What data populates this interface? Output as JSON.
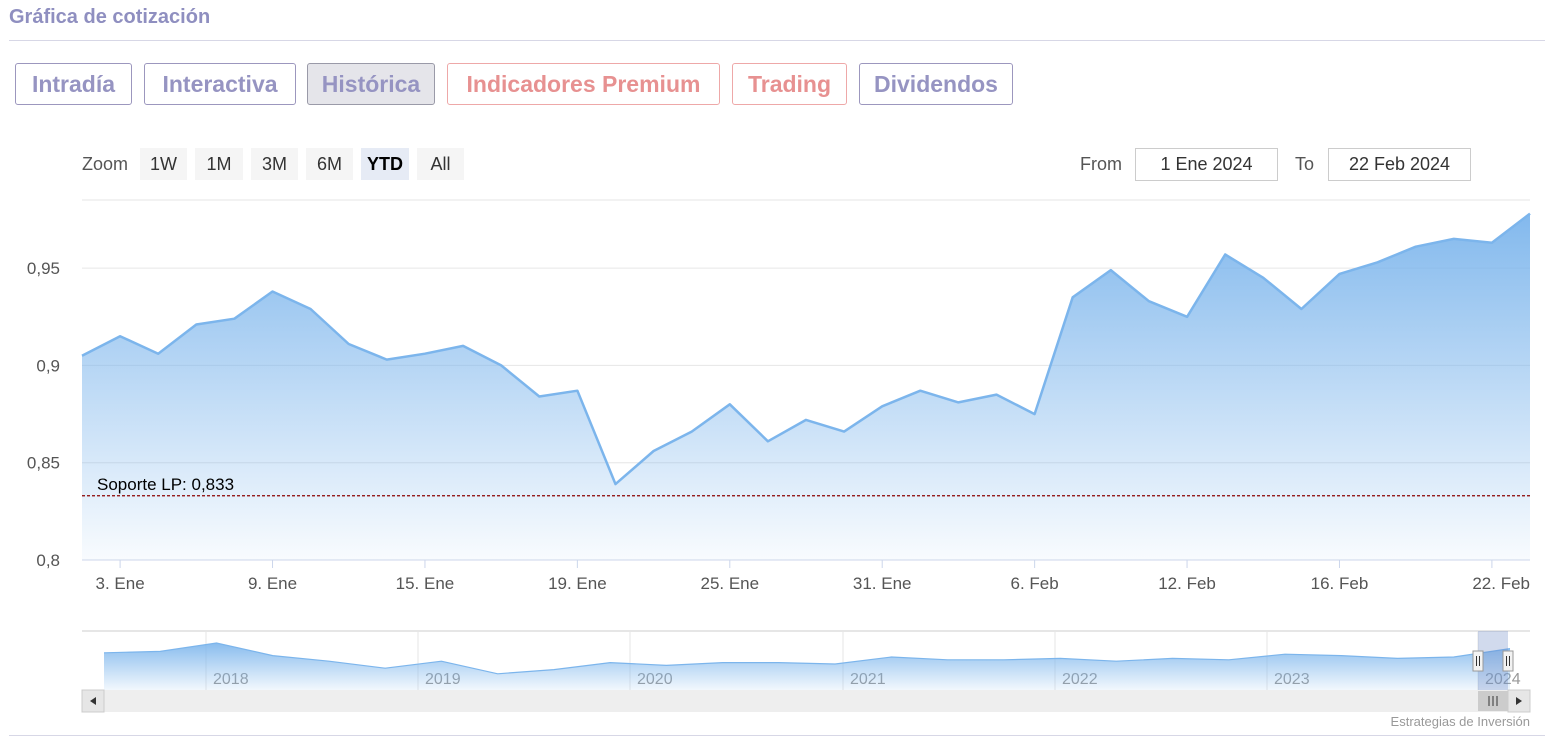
{
  "header": {
    "title": "Gráfica de cotización"
  },
  "tabs": [
    {
      "label": "Intradía",
      "state": "normal"
    },
    {
      "label": "Interactiva",
      "state": "normal"
    },
    {
      "label": "Histórica",
      "state": "active"
    },
    {
      "label": "Indicadores Premium",
      "state": "premium"
    },
    {
      "label": "Trading",
      "state": "premium"
    },
    {
      "label": "Dividendos",
      "state": "normal"
    }
  ],
  "range_selector": {
    "zoom_label": "Zoom",
    "buttons": [
      "1W",
      "1M",
      "3M",
      "6M",
      "YTD",
      "All"
    ],
    "selected": "YTD",
    "from_label": "From",
    "from_value": "1 Ene 2024",
    "to_label": "To",
    "to_value": "22 Feb 2024"
  },
  "colors": {
    "accent": "#9694c2",
    "premium": "#e79191",
    "line": "#7cb5ec",
    "support_line": "#8b0000"
  },
  "chart_data": {
    "type": "area",
    "ylim": [
      0.8,
      0.985
    ],
    "y_ticks": [
      0.8,
      0.85,
      0.9,
      0.95
    ],
    "y_tick_labels": [
      "0,8",
      "0,85",
      "0,9",
      "0,95"
    ],
    "x_ticks": [
      {
        "index": 1,
        "label": "3. Ene"
      },
      {
        "index": 5,
        "label": "9. Ene"
      },
      {
        "index": 9,
        "label": "15. Ene"
      },
      {
        "index": 13,
        "label": "19. Ene"
      },
      {
        "index": 17,
        "label": "25. Ene"
      },
      {
        "index": 21,
        "label": "31. Ene"
      },
      {
        "index": 25,
        "label": "6. Feb"
      },
      {
        "index": 29,
        "label": "12. Feb"
      },
      {
        "index": 33,
        "label": "16. Feb"
      },
      {
        "index": 37,
        "label": "22. Feb"
      }
    ],
    "values": [
      0.905,
      0.915,
      0.906,
      0.921,
      0.924,
      0.938,
      0.929,
      0.911,
      0.903,
      0.906,
      0.91,
      0.9,
      0.884,
      0.887,
      0.839,
      0.856,
      0.866,
      0.88,
      0.861,
      0.872,
      0.866,
      0.879,
      0.887,
      0.881,
      0.885,
      0.875,
      0.935,
      0.949,
      0.933,
      0.925,
      0.957,
      0.945,
      0.929,
      0.947,
      0.953,
      0.961,
      0.965,
      0.963,
      0.978
    ],
    "support": {
      "label": "Soporte LP: 0,833",
      "value": 0.833
    }
  },
  "navigator": {
    "years": [
      "2018",
      "2019",
      "2020",
      "2021",
      "2022",
      "2023",
      "2024"
    ],
    "values": [
      0.93,
      0.94,
      1.0,
      0.91,
      0.87,
      0.82,
      0.87,
      0.78,
      0.81,
      0.86,
      0.84,
      0.86,
      0.86,
      0.85,
      0.9,
      0.88,
      0.88,
      0.89,
      0.87,
      0.89,
      0.88,
      0.92,
      0.91,
      0.89,
      0.9,
      0.96
    ]
  },
  "credits": "Estrategias de Inversión"
}
